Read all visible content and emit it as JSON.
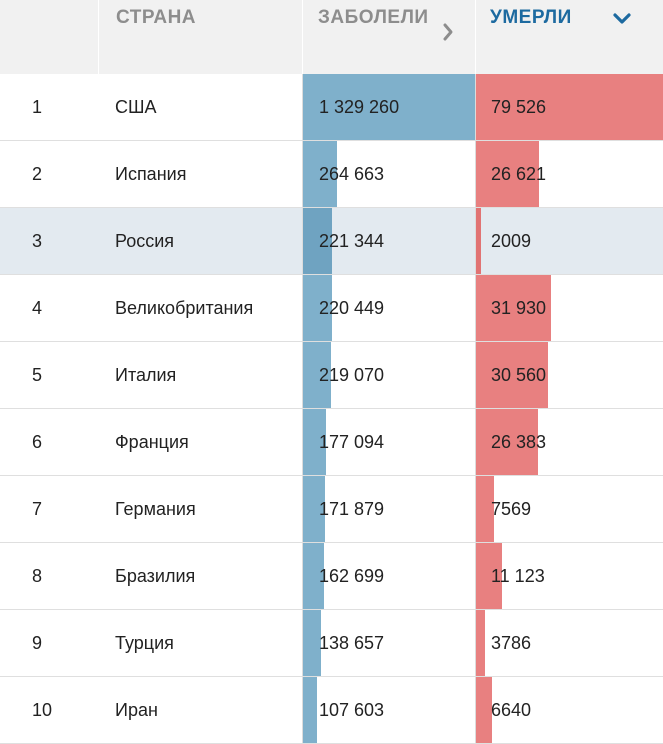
{
  "header": {
    "country_label": "СТРАНА",
    "cases_label": "ЗАБОЛЕЛИ",
    "deaths_label": "УМЕРЛИ"
  },
  "colors": {
    "header_bg": "#f1f1f1",
    "header_text": "#8d8d8d",
    "active_sort": "#1d6aa0",
    "cases_bar": "#7fb0cb",
    "deaths_bar": "#e88080",
    "highlight_row": "#e3eaf0"
  },
  "sort": {
    "column": "deaths",
    "direction": "descending",
    "icon": "chevron-down-icon"
  },
  "rows": [
    {
      "rank": "1",
      "country": "США",
      "cases": 1329260,
      "cases_label": "1 329 260",
      "deaths": 79526,
      "deaths_label": "79 526"
    },
    {
      "rank": "2",
      "country": "Испания",
      "cases": 264663,
      "cases_label": "264 663",
      "deaths": 26621,
      "deaths_label": "26 621"
    },
    {
      "rank": "3",
      "country": "Россия",
      "cases": 221344,
      "cases_label": "221 344",
      "deaths": 2009,
      "deaths_label": "2009",
      "highlighted": true
    },
    {
      "rank": "4",
      "country": "Великобритания",
      "cases": 220449,
      "cases_label": "220 449",
      "deaths": 31930,
      "deaths_label": "31 930"
    },
    {
      "rank": "5",
      "country": "Италия",
      "cases": 219070,
      "cases_label": "219 070",
      "deaths": 30560,
      "deaths_label": "30 560"
    },
    {
      "rank": "6",
      "country": "Франция",
      "cases": 177094,
      "cases_label": "177 094",
      "deaths": 26383,
      "deaths_label": "26 383"
    },
    {
      "rank": "7",
      "country": "Германия",
      "cases": 171879,
      "cases_label": "171 879",
      "deaths": 7569,
      "deaths_label": "7569"
    },
    {
      "rank": "8",
      "country": "Бразилия",
      "cases": 162699,
      "cases_label": "162 699",
      "deaths": 11123,
      "deaths_label": "11 123"
    },
    {
      "rank": "9",
      "country": "Турция",
      "cases": 138657,
      "cases_label": "138 657",
      "deaths": 3786,
      "deaths_label": "3786"
    },
    {
      "rank": "10",
      "country": "Иран",
      "cases": 107603,
      "cases_label": "107 603",
      "deaths": 6640,
      "deaths_label": "6640"
    }
  ]
}
